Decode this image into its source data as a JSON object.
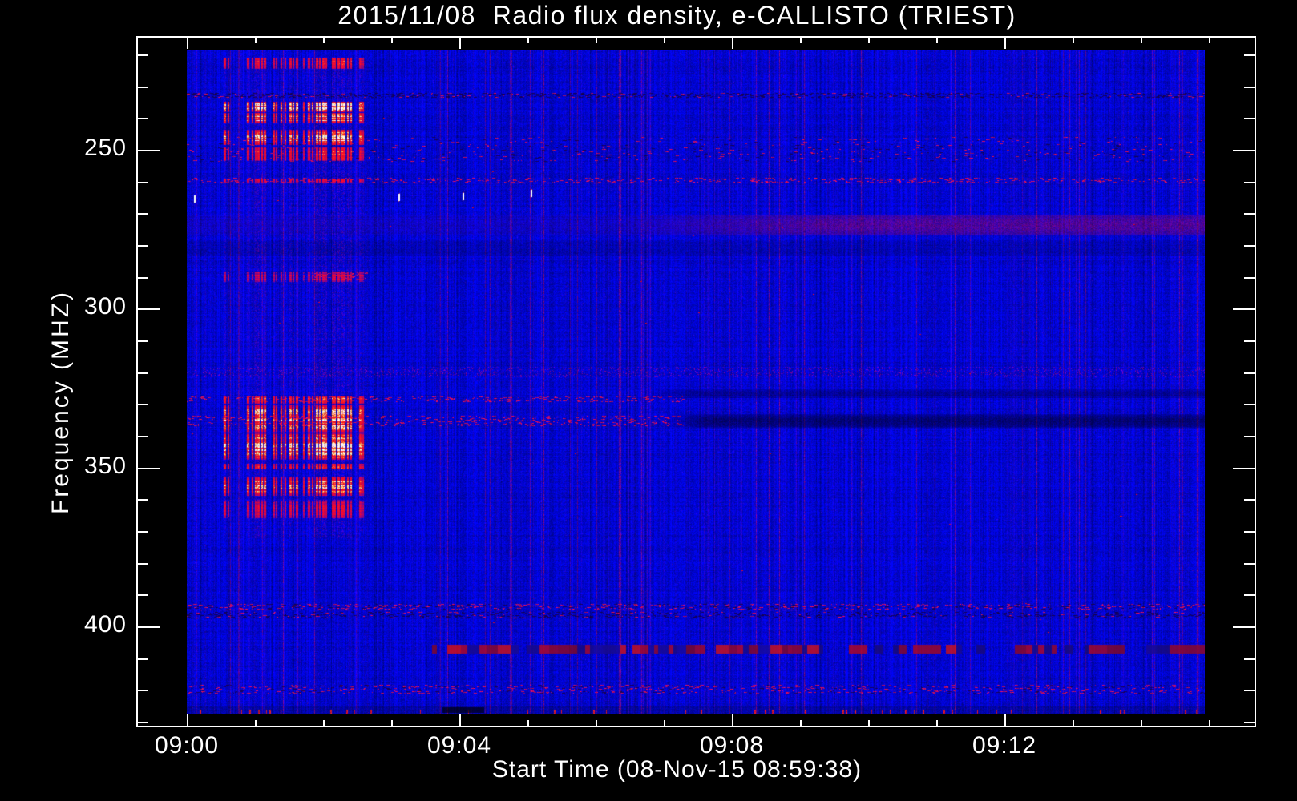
{
  "title": "2015/11/08  Radio flux density, e-CALLISTO (TRIEST)",
  "x_axis": {
    "label": "Start Time (08-Nov-15 08:59:38)",
    "ticks": [
      {
        "t": 0,
        "label": "09:00"
      },
      {
        "t": 4,
        "label": "09:04"
      },
      {
        "t": 8,
        "label": "09:08"
      },
      {
        "t": 12,
        "label": "09:12"
      }
    ],
    "minor_tick_minutes": 1,
    "max_minutes": 15
  },
  "y_axis": {
    "label": "Frequency (MHZ)",
    "ticks": [
      {
        "f": 250,
        "label": "250"
      },
      {
        "f": 300,
        "label": "300"
      },
      {
        "f": 350,
        "label": "350"
      },
      {
        "f": 400,
        "label": "400"
      }
    ],
    "minor_tick_mhz": 10,
    "min_mhz": 220,
    "max_mhz": 430
  },
  "chart_data": {
    "type": "heatmap",
    "title": "2015/11/08  Radio flux density, e-CALLISTO (TRIEST)",
    "xlabel": "Start Time (08-Nov-15 08:59:38)",
    "ylabel": "Frequency (MHZ)",
    "x_range": [
      "09:00:00",
      "09:14:56"
    ],
    "y_range_mhz": [
      218.8,
      427.5
    ],
    "y_axis_inverted": true,
    "colormap": "blue(low) -> red -> yellow -> white(high)",
    "background_flux": "low (noisy blue)",
    "annotations": [
      "Broadband vertical radio burst stripes from ~09:00:32 to ~09:02:35, strongest at 235-254 MHz and 328-366 MHz with saturated white/yellow cores near 339-347 MHz",
      "Horizontal dark speckled interference line near 232-233 MHz across full duration",
      "Reddish-purple enhancement band near 270-277 MHz, strengthening after ~09:06",
      "Dark absorption lanes near 325-328 MHz and 333-337 MHz appearing after ~09:07",
      "Dashed red/navy interference line near 406-408 MHz from ~09:03:36 onward, bright red patch near 09:03:50",
      "Speckled interference rows near 393-397 MHz and 418-421 MHz across full duration",
      "Four small white calibration specks near 263-266 MHz at ~09:00:07, 09:03:06, 09:04:03, 09:05:03"
    ],
    "features": {
      "bands": [
        {
          "kind": "dark_speckle",
          "f": [
            232.0,
            233.3
          ],
          "t": [
            0,
            14.94
          ],
          "s": 0.8
        },
        {
          "kind": "red_speckle",
          "f": [
            246.0,
            253.5
          ],
          "t": [
            0,
            14.94
          ],
          "s": 0.12,
          "dark": true
        },
        {
          "kind": "red_speckle",
          "f": [
            258.8,
            260.3
          ],
          "t": [
            0,
            14.94
          ],
          "s": 0.45
        },
        {
          "kind": "purple_wash",
          "f": [
            270.3,
            276.8
          ],
          "t": [
            0,
            14.94
          ],
          "s": 0.85
        },
        {
          "kind": "dark_band",
          "f": [
            278.8,
            283.0
          ],
          "t": [
            0,
            14.94
          ],
          "s": 0.55
        },
        {
          "kind": "red_speckle",
          "f": [
            288.3,
            290.8
          ],
          "t": [
            1.85,
            2.65
          ],
          "s": 0.85
        },
        {
          "kind": "red_tint",
          "f": [
            318.3,
            321.3
          ],
          "t": [
            0,
            14.94
          ],
          "s": 0.25
        },
        {
          "kind": "red_speckle",
          "f": [
            327.6,
            329.2
          ],
          "t": [
            0,
            7.3
          ],
          "s": 0.4
        },
        {
          "kind": "dark_lane",
          "f": [
            325.3,
            327.8
          ],
          "t": [
            6.7,
            14.94
          ],
          "s": 0.55
        },
        {
          "kind": "red_speckle",
          "f": [
            333.6,
            336.6
          ],
          "t": [
            0,
            7.3
          ],
          "s": 0.45
        },
        {
          "kind": "dark_lane",
          "f": [
            333.3,
            337.2
          ],
          "t": [
            7.0,
            14.94
          ],
          "s": 0.8
        },
        {
          "kind": "red_speckle",
          "f": [
            392.8,
            394.8
          ],
          "t": [
            0,
            14.94
          ],
          "s": 0.6,
          "dark": true
        },
        {
          "kind": "dark_speckle",
          "f": [
            395.4,
            397.2
          ],
          "t": [
            0,
            14.94
          ],
          "s": 0.55
        },
        {
          "kind": "dash_line",
          "f": [
            405.8,
            408.3
          ],
          "t": [
            3.6,
            14.94
          ],
          "s": 1.0
        },
        {
          "kind": "red_speckle",
          "f": [
            418.3,
            421.0
          ],
          "t": [
            0,
            14.94
          ],
          "s": 0.4,
          "dark": true
        },
        {
          "kind": "bottom_row",
          "f": [
            424.8,
            427.5
          ],
          "t": [
            0,
            14.94
          ],
          "s": 1.0
        }
      ],
      "bursts": {
        "t_range": [
          0.5,
          2.65
        ],
        "full_height_f": [
          223,
          372
        ],
        "columns": [
          {
            "t": 0.54,
            "w": 3,
            "i": 0.75
          },
          {
            "t": 0.6,
            "w": 2,
            "i": 0.5
          },
          {
            "t": 0.88,
            "w": 3,
            "i": 0.7
          },
          {
            "t": 0.95,
            "w": 2,
            "i": 0.55
          },
          {
            "t": 1.0,
            "w": 2,
            "i": 0.8
          },
          {
            "t": 1.04,
            "w": 3,
            "i": 0.9
          },
          {
            "t": 1.09,
            "w": 2,
            "i": 0.85
          },
          {
            "t": 1.13,
            "w": 3,
            "i": 0.8
          },
          {
            "t": 1.27,
            "w": 2,
            "i": 0.6
          },
          {
            "t": 1.31,
            "w": 2,
            "i": 0.5
          },
          {
            "t": 1.38,
            "w": 2,
            "i": 0.65
          },
          {
            "t": 1.43,
            "w": 2,
            "i": 0.55
          },
          {
            "t": 1.5,
            "w": 3,
            "i": 0.8
          },
          {
            "t": 1.55,
            "w": 2,
            "i": 0.7
          },
          {
            "t": 1.6,
            "w": 3,
            "i": 0.75
          },
          {
            "t": 1.7,
            "w": 2,
            "i": 0.5
          },
          {
            "t": 1.78,
            "w": 3,
            "i": 0.7
          },
          {
            "t": 1.83,
            "w": 2,
            "i": 0.6
          },
          {
            "t": 1.89,
            "w": 3,
            "i": 0.9
          },
          {
            "t": 1.94,
            "w": 2,
            "i": 0.85
          },
          {
            "t": 1.99,
            "w": 3,
            "i": 0.95
          },
          {
            "t": 2.04,
            "w": 2,
            "i": 0.85
          },
          {
            "t": 2.13,
            "w": 3,
            "i": 0.95
          },
          {
            "t": 2.17,
            "w": 2,
            "i": 0.9
          },
          {
            "t": 2.21,
            "w": 3,
            "i": 1.0
          },
          {
            "t": 2.26,
            "w": 3,
            "i": 1.0
          },
          {
            "t": 2.3,
            "w": 3,
            "i": 0.95
          },
          {
            "t": 2.35,
            "w": 2,
            "i": 0.9
          },
          {
            "t": 2.4,
            "w": 2,
            "i": 0.85
          },
          {
            "t": 2.53,
            "w": 3,
            "i": 0.7
          },
          {
            "t": 2.58,
            "w": 2,
            "i": 0.5
          }
        ],
        "bands": [
          {
            "f": [
              220.8,
              224.6
            ],
            "s": 0.5
          },
          {
            "f": [
              234.6,
              238.2
            ],
            "s": 1.0
          },
          {
            "f": [
              238.2,
              241.8
            ],
            "s": 0.8
          },
          {
            "f": [
              243.5,
              248.5
            ],
            "s": 0.85
          },
          {
            "f": [
              249.0,
              253.5
            ],
            "s": 0.6
          },
          {
            "f": [
              258.8,
              260.6
            ],
            "s": 0.35
          },
          {
            "f": [
              288.0,
              291.5
            ],
            "s": 0.3
          },
          {
            "f": [
              327.5,
              330.0
            ],
            "s": 0.75
          },
          {
            "f": [
              330.0,
              339.0
            ],
            "s": 0.9
          },
          {
            "f": [
              339.0,
              347.5
            ],
            "s": 1.0
          },
          {
            "f": [
              348.5,
              350.5
            ],
            "s": 0.55
          },
          {
            "f": [
              352.5,
              359.0
            ],
            "s": 0.75
          },
          {
            "f": [
              360.0,
              366.0
            ],
            "s": 0.4
          }
        ]
      },
      "white_specks": [
        {
          "t": 0.11,
          "f": 265.5
        },
        {
          "t": 3.1,
          "f": 265.0
        },
        {
          "t": 4.05,
          "f": 264.5
        },
        {
          "t": 5.05,
          "f": 263.5
        }
      ],
      "red_dot_count": 40
    }
  }
}
